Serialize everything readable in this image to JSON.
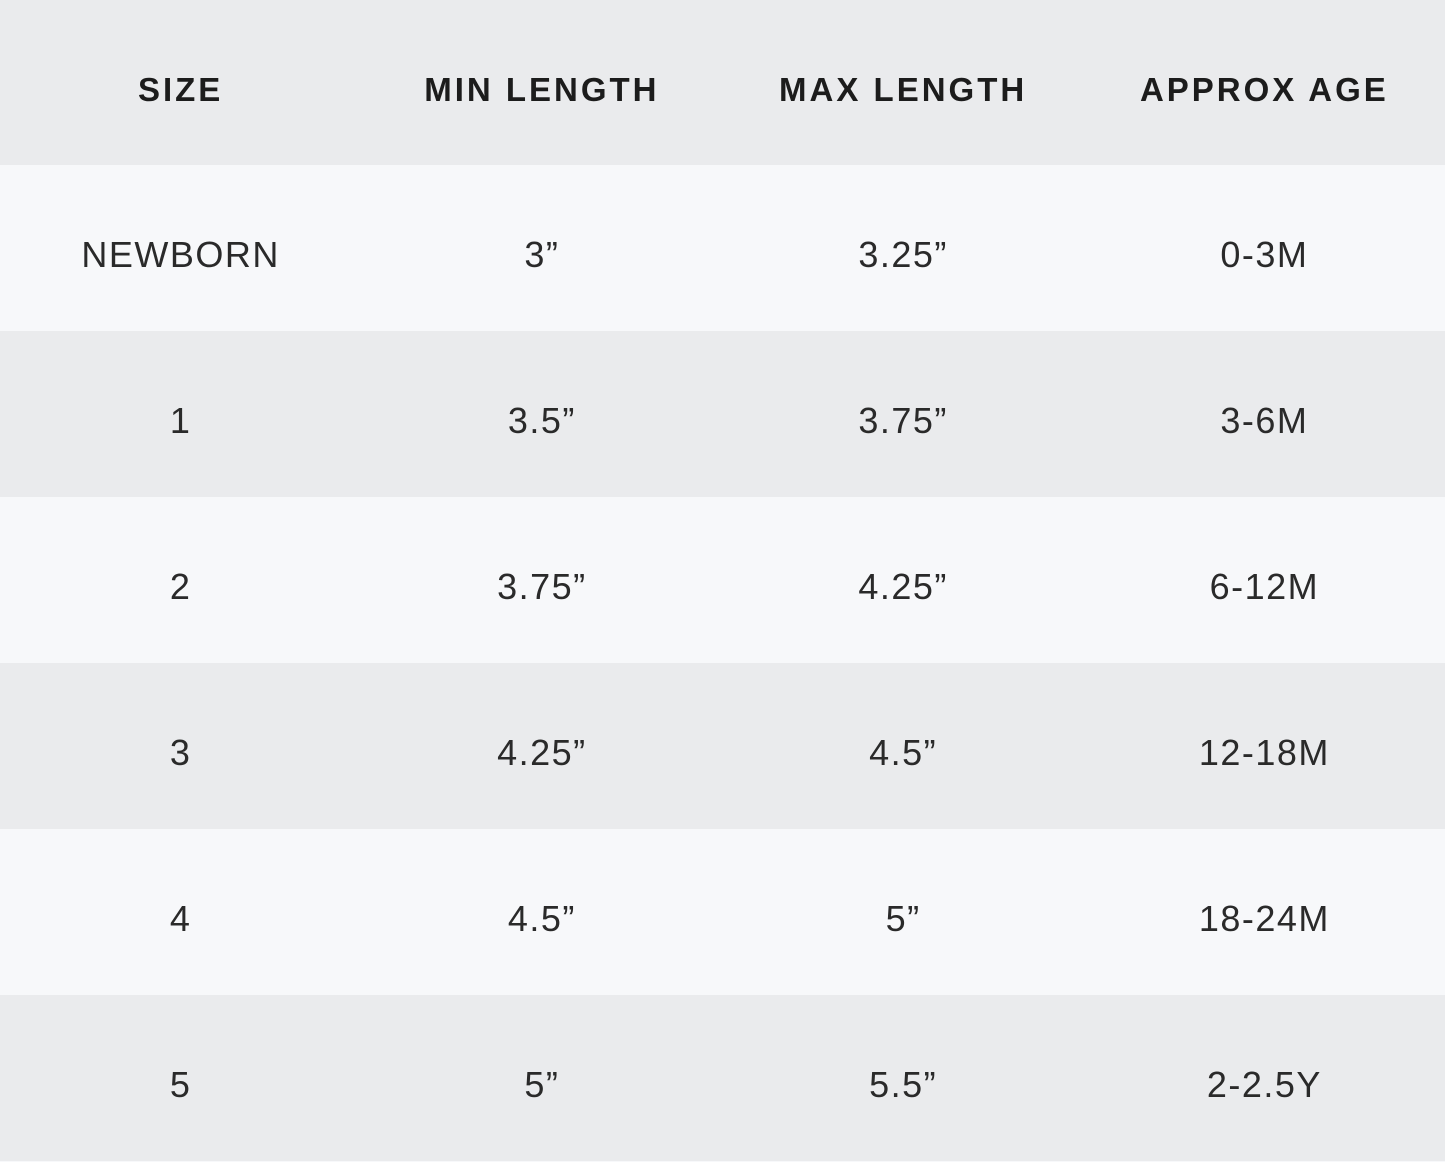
{
  "table": {
    "columns": [
      {
        "key": "size",
        "label": "SIZE"
      },
      {
        "key": "min_length",
        "label": "MIN LENGTH"
      },
      {
        "key": "max_length",
        "label": "MAX LENGTH"
      },
      {
        "key": "approx_age",
        "label": "APPROX AGE"
      }
    ],
    "rows": [
      {
        "size": "NEWBORN",
        "min_length": "3”",
        "max_length": "3.25”",
        "approx_age": "0-3M"
      },
      {
        "size": "1",
        "min_length": "3.5”",
        "max_length": "3.75”",
        "approx_age": "3-6M"
      },
      {
        "size": "2",
        "min_length": "3.75”",
        "max_length": "4.25”",
        "approx_age": "6-12M"
      },
      {
        "size": "3",
        "min_length": "4.25”",
        "max_length": "4.5”",
        "approx_age": "12-18M"
      },
      {
        "size": "4",
        "min_length": "4.5”",
        "max_length": "5”",
        "approx_age": "18-24M"
      },
      {
        "size": "5",
        "min_length": "5”",
        "max_length": "5.5”",
        "approx_age": "2-2.5Y"
      }
    ]
  },
  "colors": {
    "header_bg": "#eaebed",
    "row_gray": "#eaebed",
    "row_light": "#f7f8fa",
    "text": "#242424"
  }
}
